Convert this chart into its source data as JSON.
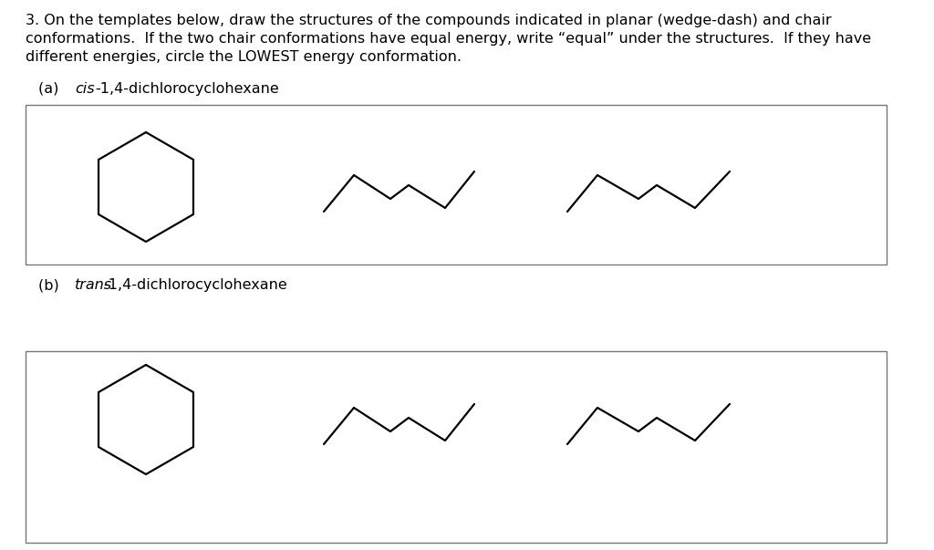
{
  "title_line1": "3. On the templates below, draw the structures of the compounds indicated in planar (wedge-dash) and chair",
  "title_line2": "conformations.  If the two chair conformations have equal energy, write “equal” under the structures.  If they have",
  "title_line3": "different energies, circle the LOWEST energy conformation.",
  "label_a_prefix": "(a)   ",
  "label_a_italic": "cis",
  "label_a_suffix": "-1,4-dichlorocyclohexane",
  "label_b_prefix": "(b)  ",
  "label_b_italic": "trans",
  "label_b_suffix": "-1,4-dichlorocyclohexane",
  "bg_color": "#ffffff",
  "line_color": "#000000",
  "box_color": "#777777",
  "font_size": 11.5,
  "lw": 1.6
}
